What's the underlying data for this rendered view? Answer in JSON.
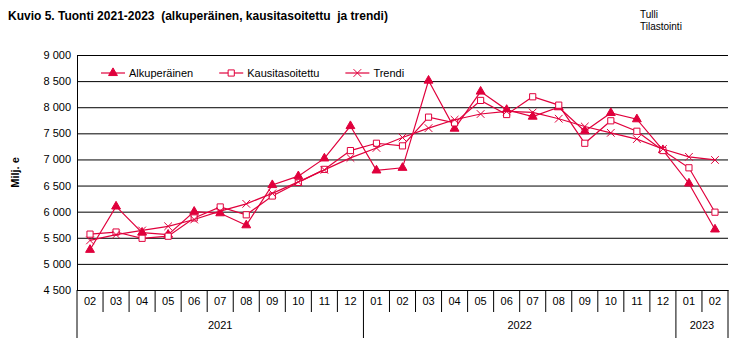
{
  "chart_data": {
    "type": "line",
    "title": "Kuvio 5. Tuonti 2021-2023  (alkuperäinen, kausitasoitettu  ja trendi)",
    "source_lines": [
      "Tulli",
      "Tilastointi"
    ],
    "y_label": "Milj. e",
    "categories": [
      "02",
      "03",
      "04",
      "05",
      "06",
      "07",
      "08",
      "09",
      "10",
      "11",
      "12",
      "01",
      "02",
      "03",
      "04",
      "05",
      "06",
      "07",
      "08",
      "09",
      "10",
      "11",
      "12",
      "01",
      "02"
    ],
    "groups": [
      {
        "label": "2021",
        "count": 11
      },
      {
        "label": "2022",
        "count": 12
      },
      {
        "label": "2023",
        "count": 2
      }
    ],
    "series": [
      {
        "name": "Alkuperäinen",
        "color": "#e0003c",
        "marker": "triangle",
        "line_style": "solid",
        "values": [
          5270,
          6100,
          5600,
          5560,
          6000,
          5970,
          5740,
          6510,
          6680,
          7020,
          7640,
          6790,
          6840,
          8510,
          7590,
          8300,
          7950,
          7820,
          8000,
          7540,
          7890,
          7770,
          7180,
          6540,
          5660
        ]
      },
      {
        "name": "Kausitasoitettu",
        "color": "#e0003c",
        "marker": "square-open",
        "line_style": "solid",
        "values": [
          5570,
          5610,
          5490,
          5530,
          5880,
          6090,
          5940,
          6300,
          6560,
          6810,
          7170,
          7310,
          7260,
          7810,
          7700,
          8130,
          7860,
          8200,
          8040,
          7310,
          7740,
          7540,
          7170,
          6840,
          5990
        ]
      },
      {
        "name": "Trendi",
        "color": "#e0003c",
        "marker": "x",
        "line_style": "solid",
        "values": [
          5450,
          5560,
          5640,
          5720,
          5850,
          6010,
          6150,
          6350,
          6570,
          6800,
          7030,
          7220,
          7420,
          7600,
          7760,
          7870,
          7920,
          7900,
          7780,
          7630,
          7510,
          7390,
          7200,
          7050,
          6990
        ]
      }
    ],
    "ylim": [
      4500,
      9000
    ],
    "yticks": [
      {
        "value": 4500,
        "label": "4 500"
      },
      {
        "value": 5000,
        "label": "5 000"
      },
      {
        "value": 5500,
        "label": "5 500"
      },
      {
        "value": 6000,
        "label": "6 000"
      },
      {
        "value": 6500,
        "label": "6 500"
      },
      {
        "value": 7000,
        "label": "7 000"
      },
      {
        "value": 7500,
        "label": "7 500"
      },
      {
        "value": 8000,
        "label": "8 000"
      },
      {
        "value": 8500,
        "label": "8 500"
      },
      {
        "value": 9000,
        "label": "9 000"
      }
    ],
    "grid": true,
    "legend": "top-left"
  }
}
